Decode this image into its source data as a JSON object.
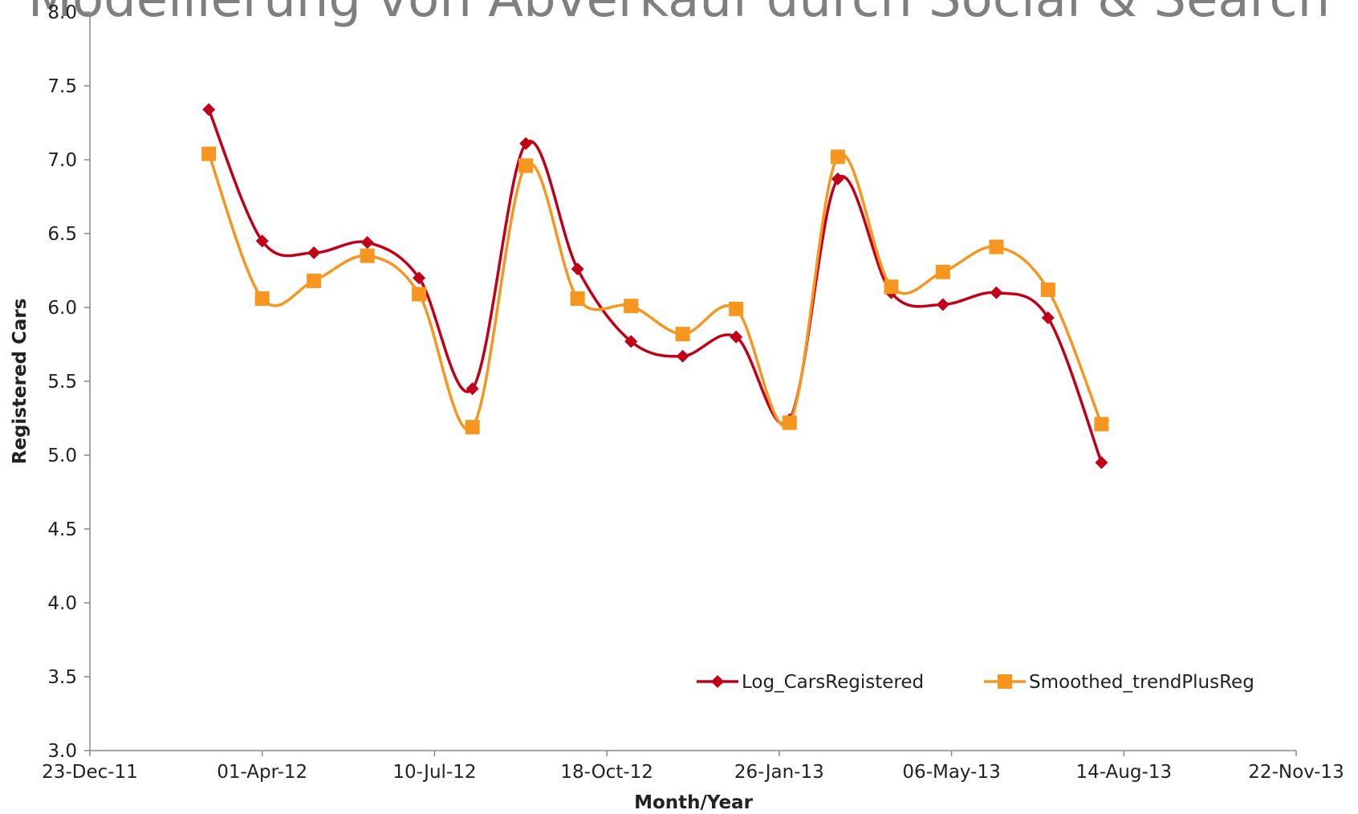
{
  "chart_data": {
    "type": "line",
    "title": "Modellierung von Abverkauf durch Social & Search",
    "xlabel": "Month/Year",
    "ylabel": "Registered Cars",
    "x": [
      40969,
      41000,
      41030,
      41061,
      41091,
      41122,
      41153,
      41183,
      41214,
      41244,
      41275,
      41306,
      41334,
      41365,
      41395,
      41426,
      41456,
      41487
    ],
    "series": [
      {
        "name": "Log_CarsRegistered",
        "color": "#c00018",
        "marker": "diamond",
        "values": [
          7.34,
          6.45,
          6.37,
          6.44,
          6.2,
          5.45,
          7.11,
          6.26,
          5.77,
          5.67,
          5.8,
          5.24,
          6.87,
          6.1,
          6.02,
          6.1,
          5.93,
          4.95
        ]
      },
      {
        "name": "Smoothed_trendPlusReg",
        "color": "#f7961e",
        "marker": "square",
        "values": [
          7.04,
          6.06,
          6.18,
          6.35,
          6.09,
          5.19,
          6.96,
          6.06,
          6.01,
          5.82,
          5.99,
          5.22,
          7.02,
          6.14,
          6.24,
          6.41,
          6.12,
          5.21
        ]
      }
    ],
    "xlim": [
      40900,
      41600
    ],
    "xticks": [
      {
        "value": 40900,
        "label": "23-Dec-11"
      },
      {
        "value": 41000,
        "label": "01-Apr-12"
      },
      {
        "value": 41100,
        "label": "10-Jul-12"
      },
      {
        "value": 41200,
        "label": "18-Oct-12"
      },
      {
        "value": 41300,
        "label": "26-Jan-13"
      },
      {
        "value": 41400,
        "label": "06-May-13"
      },
      {
        "value": 41500,
        "label": "14-Aug-13"
      },
      {
        "value": 41600,
        "label": "22-Nov-13"
      }
    ],
    "ylim": [
      3,
      8
    ],
    "yticks": [
      {
        "value": 3,
        "label": "3.0"
      },
      3.5,
      {
        "value": 4,
        "label": "4.0"
      },
      4.5,
      {
        "value": 5,
        "label": "5.0"
      },
      5.5,
      {
        "value": 6,
        "label": "6.0"
      },
      6.5,
      {
        "value": 7,
        "label": "7.0"
      },
      7.5,
      {
        "value": 8,
        "label": "8.0"
      }
    ],
    "grid": false,
    "smooth": true,
    "legend": "lower right"
  }
}
